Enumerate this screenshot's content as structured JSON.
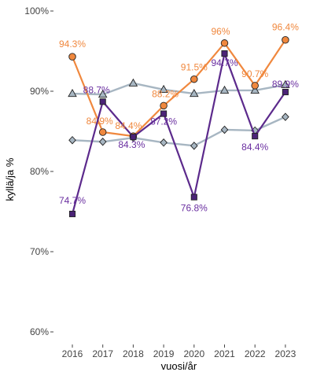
{
  "chart_data": {
    "type": "line",
    "xlabel": "vuosi/år",
    "ylabel": "kyllä/ja %",
    "x": [
      "2016",
      "2017",
      "2018",
      "2019",
      "2020",
      "2021",
      "2022",
      "2023"
    ],
    "ylim": [
      58,
      100
    ],
    "yticks": [
      60,
      70,
      80,
      90,
      100
    ],
    "ytick_labels": [
      "60%",
      "70%",
      "80%",
      "90%",
      "100%"
    ],
    "grid": false,
    "legend": "none",
    "series": [
      {
        "color": "#a7b6c2",
        "marker": "triangle",
        "marker_fill": "#a7b6c2",
        "labeled": false,
        "values": [
          89.7,
          89.6,
          91.0,
          90.2,
          89.7,
          90.1,
          90.1,
          90.8
        ]
      },
      {
        "color": "#a7b6c2",
        "marker": "diamond",
        "marker_fill": "#a7b6c2",
        "labeled": false,
        "values": [
          83.9,
          83.7,
          84.2,
          83.6,
          83.2,
          85.2,
          85.1,
          86.8
        ]
      },
      {
        "color": "#f0883e",
        "marker": "circle",
        "marker_fill": "#f0883e",
        "labeled": true,
        "label_color": "#f0883e",
        "labels": [
          "94.3%",
          "84.9%",
          "84.4%",
          "88.2%",
          "91.5%",
          "96%",
          "90.7%",
          "96.4%"
        ],
        "values": [
          94.3,
          84.9,
          84.4,
          88.2,
          91.5,
          96.0,
          90.7,
          96.4
        ]
      },
      {
        "color": "#5c2a8c",
        "marker": "square",
        "marker_fill": "#4b2377",
        "labeled": true,
        "label_color": "#6a2fa0",
        "labels": [
          "74.7%",
          "88.7%",
          "84.3%",
          "87.2%",
          "76.8%",
          "94.7%",
          "84.4%",
          "89.9%"
        ],
        "values": [
          74.7,
          88.7,
          84.3,
          87.2,
          76.8,
          94.7,
          84.4,
          89.9
        ]
      }
    ]
  }
}
